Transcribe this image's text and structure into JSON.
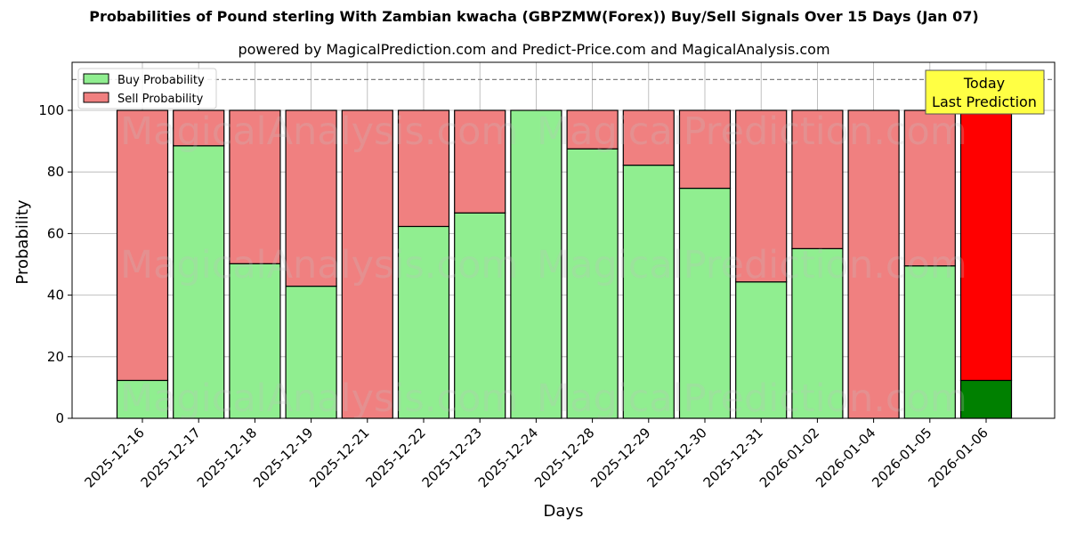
{
  "chart_data": {
    "type": "bar",
    "stacked": true,
    "title": "Probabilities of Pound sterling With Zambian kwacha (GBPZMW(Forex)) Buy/Sell Signals Over 15 Days (Jan 07)",
    "subtitle": "powered by MagicalPrediction.com and Predict-Price.com and MagicalAnalysis.com",
    "xlabel": "Days",
    "ylabel": "Probability",
    "ylim": [
      0,
      115
    ],
    "yticks": [
      0,
      20,
      40,
      60,
      80,
      100
    ],
    "grid": true,
    "reference_line": {
      "y": 110,
      "style": "dashed",
      "color": "#808080"
    },
    "legend_position": "upper left",
    "categories": [
      "2025-12-16",
      "2025-12-17",
      "2025-12-18",
      "2025-12-19",
      "2025-12-21",
      "2025-12-22",
      "2025-12-23",
      "2025-12-24",
      "2025-12-28",
      "2025-12-29",
      "2025-12-30",
      "2025-12-31",
      "2026-01-02",
      "2026-01-04",
      "2026-01-05",
      "2026-01-06"
    ],
    "series": [
      {
        "name": "Buy Probability",
        "color": "#90ee90",
        "values": [
          12.3,
          88.5,
          50.2,
          42.9,
          0,
          62.3,
          66.7,
          100,
          87.5,
          82.2,
          74.7,
          44.3,
          55.1,
          0,
          49.5,
          12.3
        ]
      },
      {
        "name": "Sell Probability",
        "color": "#f08080",
        "values": [
          87.7,
          11.5,
          49.8,
          57.1,
          100,
          37.7,
          33.3,
          0,
          12.5,
          17.8,
          25.3,
          55.7,
          44.9,
          100,
          50.5,
          87.7
        ]
      }
    ],
    "highlight": {
      "index": 15,
      "buy_color": "#008000",
      "sell_color": "#ff0000",
      "annotation": [
        "Today",
        "Last Prediction"
      ],
      "annotation_bg": "#ffff44"
    },
    "watermarks": [
      "MagicalAnalysis.com",
      "MagicalPrediction.com"
    ]
  }
}
